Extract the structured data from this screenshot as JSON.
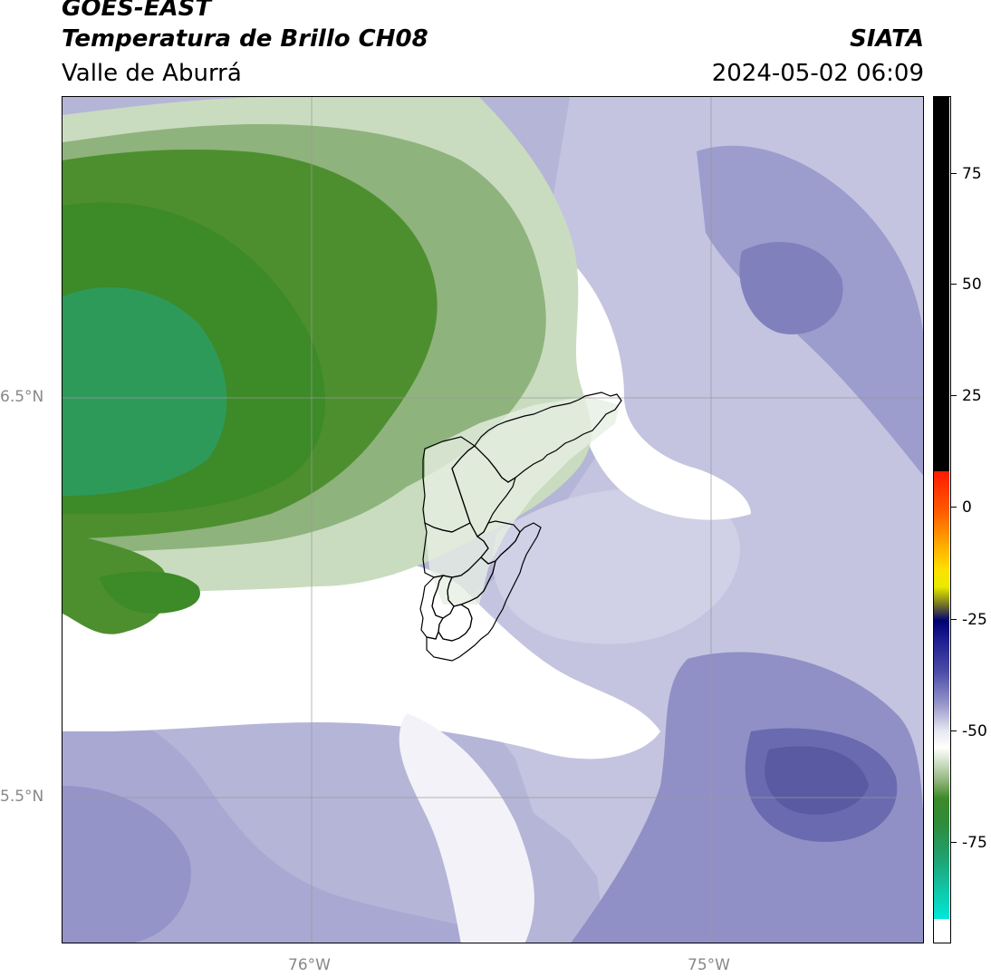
{
  "header": {
    "line1_left": "GOES-EAST",
    "line2_left": "Temperatura de Brillo CH08",
    "line2_right": "SIATA",
    "line3_left": "Valle de Aburrá",
    "line3_right": "2024-05-02 06:09"
  },
  "map": {
    "lat_labels": [
      "6.5°N",
      "5.5°N"
    ],
    "lon_labels": [
      "76°W",
      "75°W"
    ],
    "colors": {
      "green_dark": "#3f8a25",
      "green_mid": "#6b9f55",
      "green_light": "#c9dcbf",
      "white": "#ffffff",
      "lavender_light": "#d9d9ea",
      "lavender": "#b5b5d8",
      "purple": "#8b8bc4",
      "purple_dark": "#5d5da6",
      "grid": "#999999",
      "boundary": "#000000"
    }
  },
  "colorbar": {
    "ticks": [
      "75",
      "50",
      "25",
      "0",
      "-25",
      "-50",
      "-75"
    ]
  }
}
